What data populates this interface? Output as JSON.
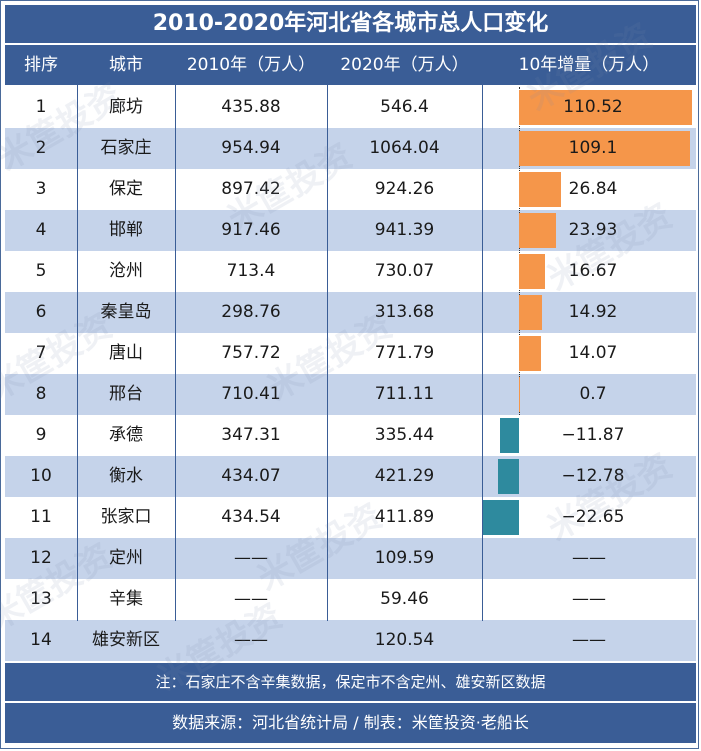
{
  "title": "2010-2020年河北省各城市总人口变化",
  "headers": [
    "排序",
    "城市",
    "2010年（万人）",
    "2020年（万人）",
    "10年增量（万人）"
  ],
  "colors": {
    "header_bg": "#3a5d96",
    "stripe": "#c5d3ea",
    "positive_bar": "#f5964a",
    "negative_bar": "#2e8a9e"
  },
  "watermark_text": "米筐投资",
  "rows": [
    {
      "rank": "1",
      "city": "廊坊",
      "y2010": "435.88",
      "y2020": "546.4",
      "delta": "110.52"
    },
    {
      "rank": "2",
      "city": "石家庄",
      "y2010": "954.94",
      "y2020": "1064.04",
      "delta": "109.1"
    },
    {
      "rank": "3",
      "city": "保定",
      "y2010": "897.42",
      "y2020": "924.26",
      "delta": "26.84"
    },
    {
      "rank": "4",
      "city": "邯郸",
      "y2010": "917.46",
      "y2020": "941.39",
      "delta": "23.93"
    },
    {
      "rank": "5",
      "city": "沧州",
      "y2010": "713.4",
      "y2020": "730.07",
      "delta": "16.67"
    },
    {
      "rank": "6",
      "city": "秦皇岛",
      "y2010": "298.76",
      "y2020": "313.68",
      "delta": "14.92"
    },
    {
      "rank": "7",
      "city": "唐山",
      "y2010": "757.72",
      "y2020": "771.79",
      "delta": "14.07"
    },
    {
      "rank": "8",
      "city": "邢台",
      "y2010": "710.41",
      "y2020": "711.11",
      "delta": "0.7"
    },
    {
      "rank": "9",
      "city": "承德",
      "y2010": "347.31",
      "y2020": "335.44",
      "delta": "−11.87"
    },
    {
      "rank": "10",
      "city": "衡水",
      "y2010": "434.07",
      "y2020": "421.29",
      "delta": "−12.78"
    },
    {
      "rank": "11",
      "city": "张家口",
      "y2010": "434.54",
      "y2020": "411.89",
      "delta": "−22.65"
    },
    {
      "rank": "12",
      "city": "定州",
      "y2010": "——",
      "y2020": "109.59",
      "delta": "——"
    },
    {
      "rank": "13",
      "city": "辛集",
      "y2010": "——",
      "y2020": "59.46",
      "delta": "——"
    },
    {
      "rank": "14",
      "city": "雄安新区",
      "y2010": "——",
      "y2020": "120.54",
      "delta": "——"
    }
  ],
  "chart_data": {
    "type": "bar",
    "orientation": "horizontal",
    "categories": [
      "廊坊",
      "石家庄",
      "保定",
      "邯郸",
      "沧州",
      "秦皇岛",
      "唐山",
      "邢台",
      "承德",
      "衡水",
      "张家口"
    ],
    "values": [
      110.52,
      109.1,
      26.84,
      23.93,
      16.67,
      14.92,
      14.07,
      0.7,
      -11.87,
      -12.78,
      -22.65
    ],
    "title": "10年增量（万人）",
    "xlim": [
      -22.65,
      110.52
    ]
  },
  "note": "注：石家庄不含辛集数据，保定市不含定州、雄安新区数据",
  "source": "数据来源：河北省统计局 / 制表：米筐投资·老船长"
}
